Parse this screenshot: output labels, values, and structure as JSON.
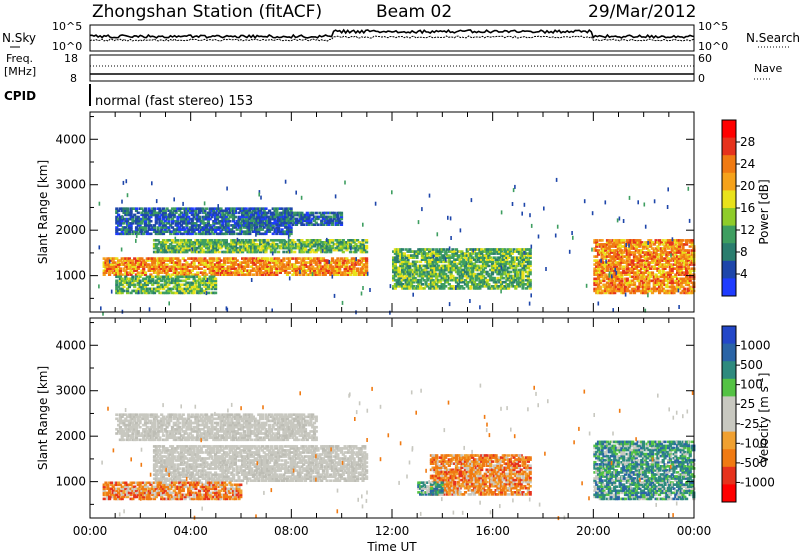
{
  "header": {
    "station": "Zhongshan Station (fitACF)",
    "beam": "Beam 02",
    "date": "29/Mar/2012"
  },
  "summary_panels": {
    "nsky_label": "N.Sky",
    "nsky_ticks": [
      "10^5",
      "10^0"
    ],
    "nsearch_label": "N.Search",
    "nsearch_ticks": [
      "10^5",
      "10^0"
    ],
    "freq_label_1": "Freq.",
    "freq_label_2": "[MHz]",
    "freq_ticks": [
      "18",
      "8"
    ],
    "nave_label": "Nave",
    "nave_ticks": [
      "60",
      "0"
    ],
    "cpid_label": "CPID",
    "cpid_text": "normal (fast stereo) 153"
  },
  "chart_data": [
    {
      "type": "heatmap",
      "panel": "power",
      "ylabel": "Slant Range [km]",
      "ylim": [
        200,
        4600
      ],
      "yticks": [
        "1000",
        "2000",
        "3000",
        "4000"
      ],
      "xlim": [
        0,
        24
      ],
      "colorbar_label": "Power [dB]",
      "colorbar_ticks": [
        "4",
        "8",
        "12",
        "16",
        "20",
        "24",
        "28"
      ],
      "colorbar_colors": [
        "#1f3cff",
        "#1e46aa",
        "#2a7d6e",
        "#3e9e60",
        "#8fcc2a",
        "#e9e21b",
        "#f5a21b",
        "#f07a12",
        "#e6321c",
        "#ff0000"
      ],
      "echo_regions": [
        {
          "t0": 0.5,
          "t1": 11.0,
          "r0": 1000,
          "r1": 1400,
          "level": "high"
        },
        {
          "t0": 2.5,
          "t1": 11.0,
          "r0": 1500,
          "r1": 1800,
          "level": "mid"
        },
        {
          "t0": 1.0,
          "t1": 8.0,
          "r0": 1900,
          "r1": 2500,
          "level": "low"
        },
        {
          "t0": 6.0,
          "t1": 10.0,
          "r0": 2100,
          "r1": 2400,
          "level": "low"
        },
        {
          "t0": 1.0,
          "t1": 5.0,
          "r0": 600,
          "r1": 1000,
          "level": "mid"
        },
        {
          "t0": 12.0,
          "t1": 17.5,
          "r0": 700,
          "r1": 1600,
          "level": "mid"
        },
        {
          "t0": 20.0,
          "t1": 24.0,
          "r0": 600,
          "r1": 1800,
          "level": "high"
        }
      ]
    },
    {
      "type": "heatmap",
      "panel": "velocity",
      "ylabel": "Slant Range [km]",
      "ylim": [
        200,
        4600
      ],
      "yticks": [
        "1000",
        "2000",
        "3000",
        "4000"
      ],
      "xlabel": "Time UT",
      "xlim": [
        0,
        24
      ],
      "xticks": [
        "00:00",
        "04:00",
        "08:00",
        "12:00",
        "16:00",
        "20:00",
        "00:00"
      ],
      "colorbar_label": "Velocity [m s^-1]",
      "colorbar_ticks": [
        "1000",
        "500",
        "100",
        "25",
        "-25",
        "-100",
        "-500",
        "-1000"
      ],
      "colorbar_colors": [
        "#2347c8",
        "#2a64a6",
        "#2e8a7e",
        "#54c244",
        "#c8c8c0",
        "#c8c8c0",
        "#f0a030",
        "#f07a12",
        "#e6321c",
        "#ff0000"
      ],
      "echo_regions": [
        {
          "t0": 2.5,
          "t1": 11.0,
          "r0": 1000,
          "r1": 1800,
          "level": "ground"
        },
        {
          "t0": 1.0,
          "t1": 9.0,
          "r0": 1900,
          "r1": 2500,
          "level": "ground"
        },
        {
          "t0": 0.5,
          "t1": 6.0,
          "r0": 600,
          "r1": 1000,
          "level": "neg"
        },
        {
          "t0": 13.5,
          "t1": 17.5,
          "r0": 700,
          "r1": 1600,
          "level": "neg"
        },
        {
          "t0": 13.0,
          "t1": 14.0,
          "r0": 700,
          "r1": 1000,
          "level": "pos"
        },
        {
          "t0": 20.0,
          "t1": 24.0,
          "r0": 600,
          "r1": 1900,
          "level": "pos"
        }
      ]
    }
  ]
}
